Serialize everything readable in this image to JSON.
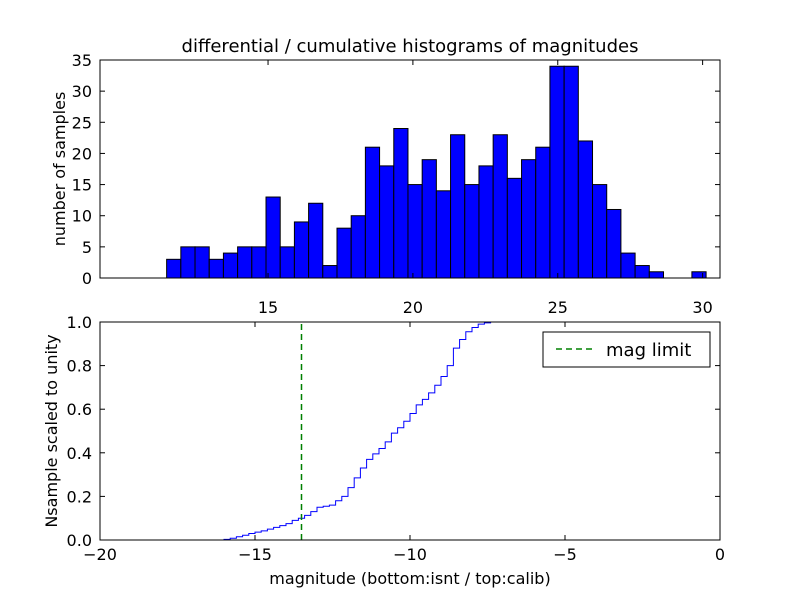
{
  "figure_title": "differential / cumulative histograms of magnitudes",
  "colors": {
    "bar_fill": "#0000ff",
    "bar_edge": "#000000",
    "cumulative_line": "#0000ff",
    "limit_line": "#008000"
  },
  "chart_data": [
    {
      "type": "bar",
      "title": "differential / cumulative histograms of magnitudes",
      "xlabel": "",
      "ylabel": "number of samples",
      "xlim": [
        9.2,
        30.6
      ],
      "ylim": [
        0,
        35
      ],
      "xticks": [
        15,
        20,
        25,
        30
      ],
      "yticks": [
        0,
        5,
        10,
        15,
        20,
        25,
        30,
        35
      ],
      "grid": false,
      "bin_width": 0.49,
      "bin_starts": [
        11.5,
        11.99,
        12.48,
        12.97,
        13.46,
        13.95,
        14.44,
        14.93,
        15.42,
        15.91,
        16.4,
        16.89,
        17.38,
        17.87,
        18.36,
        18.85,
        19.34,
        19.83,
        20.32,
        20.81,
        21.3,
        21.79,
        22.28,
        22.77,
        23.26,
        23.75,
        24.24,
        24.73,
        25.22,
        25.71,
        26.2,
        26.69,
        27.18,
        27.67,
        28.16,
        28.65,
        29.14,
        29.63,
        30.12
      ],
      "values": [
        3,
        5,
        5,
        3,
        4,
        5,
        5,
        13,
        5,
        9,
        12,
        2,
        8,
        10,
        21,
        18,
        24,
        15,
        19,
        14,
        23,
        15,
        18,
        23,
        16,
        19,
        21,
        34,
        34,
        22,
        15,
        11,
        4,
        2,
        1,
        0,
        0,
        1,
        0
      ]
    },
    {
      "type": "line",
      "title": "",
      "xlabel": "magnitude (bottom:isnt / top:calib)",
      "ylabel": "Nsample scaled to unity",
      "xlim": [
        -20,
        0
      ],
      "ylim": [
        0,
        1.0
      ],
      "xticks": [
        -20,
        -15,
        -10,
        -5,
        0
      ],
      "xtick_labels": [
        "−20",
        "−15",
        "−10",
        "−5",
        "0"
      ],
      "yticks": [
        0.0,
        0.2,
        0.4,
        0.6,
        0.8,
        1.0
      ],
      "ytick_labels": [
        "0.0",
        "0.2",
        "0.4",
        "0.6",
        "0.8",
        "1.0"
      ],
      "grid": false,
      "legend_position": "top-right",
      "series": [
        {
          "name": "",
          "style": "step",
          "x": [
            -20,
            -16.0,
            -15.8,
            -15.6,
            -15.4,
            -15.2,
            -15.0,
            -14.8,
            -14.6,
            -14.4,
            -14.2,
            -14.0,
            -13.8,
            -13.6,
            -13.4,
            -13.2,
            -13.0,
            -12.8,
            -12.6,
            -12.4,
            -12.2,
            -12.0,
            -11.8,
            -11.6,
            -11.4,
            -11.2,
            -11.0,
            -10.8,
            -10.6,
            -10.4,
            -10.2,
            -10.0,
            -9.8,
            -9.6,
            -9.4,
            -9.2,
            -9.0,
            -8.8,
            -8.6,
            -8.4,
            -8.2,
            -8.0,
            -7.8,
            -7.6,
            -7.4,
            -7.2,
            0,
            0
          ],
          "y": [
            0.0,
            0.003,
            0.008,
            0.015,
            0.022,
            0.03,
            0.036,
            0.042,
            0.05,
            0.058,
            0.066,
            0.075,
            0.09,
            0.1,
            0.113,
            0.13,
            0.15,
            0.155,
            0.16,
            0.18,
            0.2,
            0.24,
            0.285,
            0.33,
            0.37,
            0.395,
            0.42,
            0.45,
            0.49,
            0.515,
            0.545,
            0.58,
            0.62,
            0.645,
            0.675,
            0.71,
            0.75,
            0.8,
            0.88,
            0.92,
            0.955,
            0.975,
            0.99,
            0.996,
            1.0,
            1.0,
            1.0,
            0.0
          ]
        },
        {
          "name": "mag limit",
          "style": "dashed",
          "x": [
            -13.5,
            -13.5
          ],
          "y": [
            0,
            1.0
          ]
        }
      ]
    }
  ]
}
